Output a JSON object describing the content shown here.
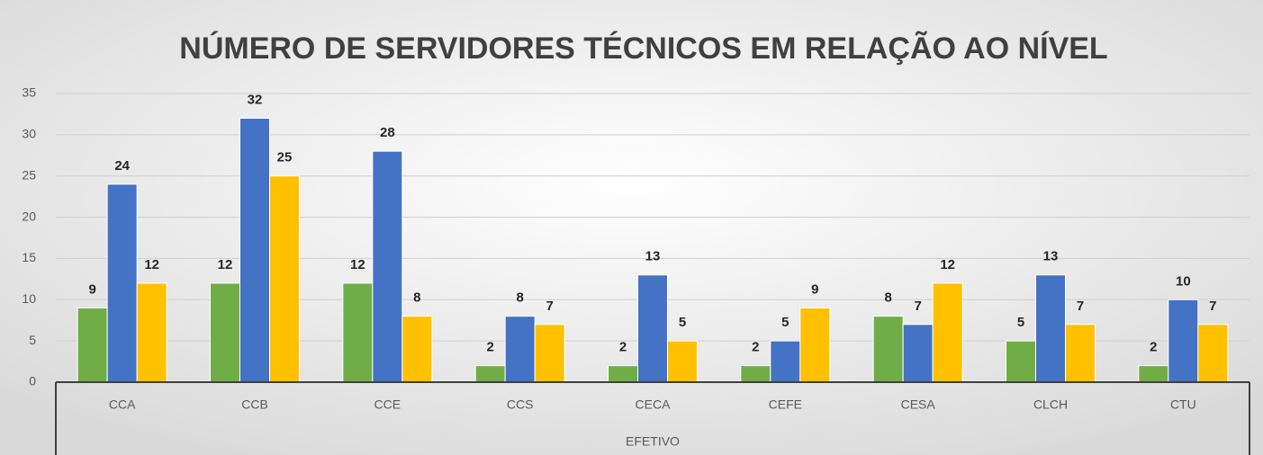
{
  "chart_data": {
    "type": "bar",
    "title": "NÚMERO  DE SERVIDORES TÉCNICOS EM RELAÇÃO AO NÍVEL",
    "categories": [
      "CCA",
      "CCB",
      "CCE",
      "CCS",
      "CECA",
      "CEFE",
      "CESA",
      "CLCH",
      "CTU"
    ],
    "group_label": "EFETIVO",
    "series": [
      {
        "color": "#70ad47",
        "values": [
          9,
          12,
          12,
          2,
          2,
          2,
          8,
          5,
          2
        ]
      },
      {
        "color": "#4472c4",
        "values": [
          24,
          32,
          28,
          8,
          13,
          5,
          7,
          13,
          10
        ]
      },
      {
        "color": "#ffc000",
        "values": [
          12,
          25,
          8,
          7,
          5,
          9,
          12,
          7,
          7
        ]
      }
    ],
    "ylim": [
      0,
      35
    ],
    "yticks": [
      0,
      5,
      10,
      15,
      20,
      25,
      30,
      35
    ],
    "grid": true
  }
}
